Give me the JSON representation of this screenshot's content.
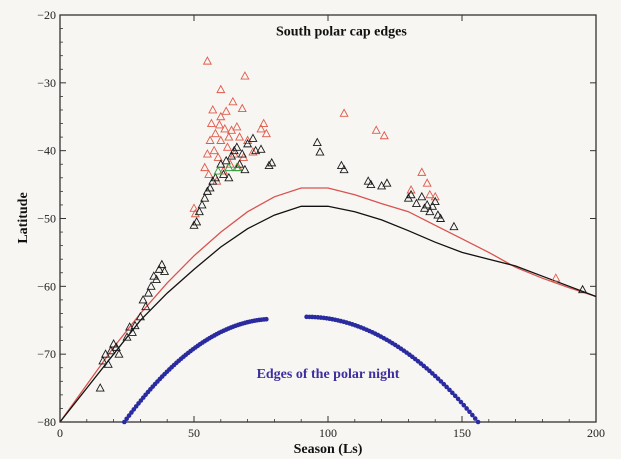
{
  "chart_data": {
    "type": "scatter",
    "title": "",
    "xlabel": "Season (Ls)",
    "ylabel": "Latitude",
    "xlim": [
      0,
      200
    ],
    "ylim": [
      -80,
      -20
    ],
    "xticks": [
      0,
      50,
      100,
      150,
      200
    ],
    "yticks": [
      -80,
      -70,
      -60,
      -50,
      -40,
      -30,
      -20
    ],
    "grid": false,
    "annotations": [
      {
        "text": "South polar cap edges",
        "x": 105,
        "y": -23,
        "color": "#111111",
        "key": "cap"
      },
      {
        "text": "Edges of the polar night",
        "x": 100,
        "y": -73.5,
        "color": "#3d2f9e",
        "key": "night"
      }
    ],
    "curves": [
      {
        "color": "#d9534f",
        "points": [
          [
            0,
            -80
          ],
          [
            10,
            -74.5
          ],
          [
            20,
            -69
          ],
          [
            30,
            -64
          ],
          [
            40,
            -59.5
          ],
          [
            50,
            -55.5
          ],
          [
            60,
            -52
          ],
          [
            70,
            -49
          ],
          [
            80,
            -46.8
          ],
          [
            90,
            -45.5
          ],
          [
            100,
            -45.5
          ],
          [
            110,
            -46.5
          ],
          [
            120,
            -47.8
          ],
          [
            130,
            -49
          ],
          [
            140,
            -51
          ],
          [
            150,
            -53
          ],
          [
            160,
            -55
          ],
          [
            170,
            -57.2
          ],
          [
            180,
            -58.8
          ],
          [
            190,
            -60.2
          ],
          [
            200,
            -61.5
          ]
        ]
      },
      {
        "color": "#111111",
        "points": [
          [
            0,
            -80
          ],
          [
            10,
            -75
          ],
          [
            20,
            -70
          ],
          [
            30,
            -65
          ],
          [
            40,
            -61
          ],
          [
            50,
            -57.5
          ],
          [
            60,
            -54.2
          ],
          [
            70,
            -51.5
          ],
          [
            80,
            -49.5
          ],
          [
            90,
            -48.2
          ],
          [
            100,
            -48.2
          ],
          [
            110,
            -49
          ],
          [
            120,
            -50.2
          ],
          [
            130,
            -51.8
          ],
          [
            140,
            -53.5
          ],
          [
            150,
            -55
          ],
          [
            160,
            -56
          ],
          [
            170,
            -57
          ],
          [
            180,
            -58.5
          ],
          [
            190,
            -60
          ],
          [
            200,
            -61.5
          ]
        ]
      }
    ],
    "series": [
      {
        "color": "#e05a4a",
        "marker": "triangle",
        "points": [
          [
            50,
            -48.5
          ],
          [
            50.5,
            -49.3
          ],
          [
            54,
            -42.5
          ],
          [
            55,
            -26.8
          ],
          [
            55,
            -40.5
          ],
          [
            55.5,
            -43.5
          ],
          [
            56,
            -38.5
          ],
          [
            56.5,
            -36
          ],
          [
            57,
            -34
          ],
          [
            57.5,
            -40
          ],
          [
            58,
            -37.5
          ],
          [
            58.5,
            -44.5
          ],
          [
            59,
            -41
          ],
          [
            59.5,
            -36.2
          ],
          [
            60,
            -31
          ],
          [
            60,
            -35
          ],
          [
            60,
            -38.5
          ],
          [
            61,
            -43
          ],
          [
            61.5,
            -36.8
          ],
          [
            62,
            -34.2
          ],
          [
            62.5,
            -39.5
          ],
          [
            63,
            -38
          ],
          [
            63.5,
            -42
          ],
          [
            64,
            -37
          ],
          [
            64.5,
            -32.8
          ],
          [
            65,
            -40.5
          ],
          [
            66,
            -36.5
          ],
          [
            66.5,
            -42.5
          ],
          [
            67,
            -38
          ],
          [
            68,
            -33.8
          ],
          [
            68.5,
            -41
          ],
          [
            69,
            -29
          ],
          [
            70,
            -38.5
          ],
          [
            72,
            -40.2
          ],
          [
            75,
            -36.8
          ],
          [
            76,
            -36
          ],
          [
            77,
            -37.5
          ],
          [
            106,
            -34.5
          ],
          [
            118,
            -37
          ],
          [
            121,
            -37.8
          ],
          [
            131,
            -45.8
          ],
          [
            135,
            -43.2
          ],
          [
            137,
            -44.8
          ],
          [
            138,
            -46.5
          ],
          [
            140,
            -46.8
          ],
          [
            185,
            -58.8
          ]
        ]
      },
      {
        "color": "#1a1a1a",
        "marker": "triangle",
        "points": [
          [
            15,
            -75
          ],
          [
            16,
            -71
          ],
          [
            17,
            -70
          ],
          [
            18,
            -71.5
          ],
          [
            19,
            -69.5
          ],
          [
            20,
            -68.5
          ],
          [
            21,
            -69
          ],
          [
            22,
            -70
          ],
          [
            25,
            -67.5
          ],
          [
            26,
            -66
          ],
          [
            27,
            -66.8
          ],
          [
            28,
            -65.8
          ],
          [
            30,
            -64.5
          ],
          [
            31,
            -62
          ],
          [
            32,
            -63
          ],
          [
            33,
            -61
          ],
          [
            34,
            -60
          ],
          [
            35,
            -58.5
          ],
          [
            36,
            -59
          ],
          [
            37,
            -57.5
          ],
          [
            38,
            -56.8
          ],
          [
            39,
            -57.8
          ],
          [
            50,
            -51
          ],
          [
            51,
            -50.5
          ],
          [
            52,
            -49
          ],
          [
            53,
            -48
          ],
          [
            54,
            -47
          ],
          [
            55,
            -46
          ],
          [
            56,
            -45.5
          ],
          [
            57,
            -44.5
          ],
          [
            58,
            -44
          ],
          [
            60,
            -42
          ],
          [
            61,
            -43.5
          ],
          [
            62,
            -41.5
          ],
          [
            63,
            -44
          ],
          [
            64,
            -40.8
          ],
          [
            65,
            -40
          ],
          [
            66,
            -39.5
          ],
          [
            67,
            -42
          ],
          [
            68,
            -40.5
          ],
          [
            69,
            -42.8
          ],
          [
            70,
            -39
          ],
          [
            72,
            -38.2
          ],
          [
            73,
            -40
          ],
          [
            75,
            -39.8
          ],
          [
            78,
            -42.2
          ],
          [
            79,
            -41.8
          ],
          [
            96,
            -38.8
          ],
          [
            97,
            -40.2
          ],
          [
            105,
            -42.2
          ],
          [
            106,
            -42.8
          ],
          [
            115,
            -44.5
          ],
          [
            116,
            -45
          ],
          [
            120,
            -45.2
          ],
          [
            122,
            -44.8
          ],
          [
            130,
            -47
          ],
          [
            131,
            -46.5
          ],
          [
            133,
            -47.8
          ],
          [
            135,
            -46.8
          ],
          [
            136,
            -48.5
          ],
          [
            137,
            -48
          ],
          [
            138,
            -49
          ],
          [
            139,
            -48.2
          ],
          [
            140,
            -47.5
          ],
          [
            141,
            -49.5
          ],
          [
            142,
            -50
          ],
          [
            147,
            -51.2
          ],
          [
            195,
            -60.5
          ]
        ]
      },
      {
        "color": "#2e9e3e",
        "marker": "triangle",
        "points": [
          [
            59,
            -43
          ],
          [
            63,
            -42.5
          ],
          [
            66,
            -42.5
          ]
        ]
      },
      {
        "color": "#2b2ba0",
        "marker": "dense-band",
        "segments": [
          {
            "x_start": 24,
            "x_end": 77,
            "apex_x": 80,
            "apex_y": -64.8,
            "base_y": -80
          },
          {
            "x_start": 92,
            "x_end": 156,
            "apex_x": 92,
            "apex_y": -64.5,
            "base_y": -80
          }
        ]
      }
    ]
  }
}
